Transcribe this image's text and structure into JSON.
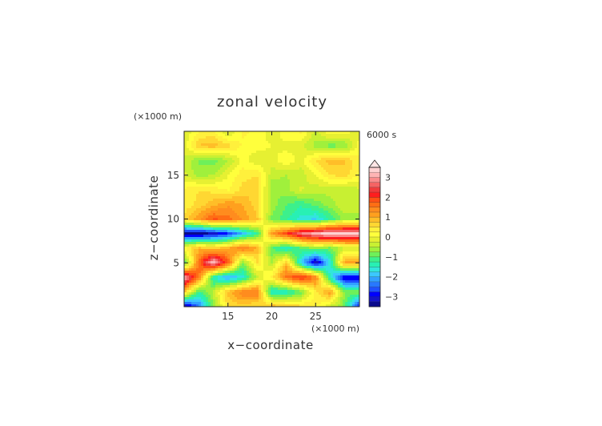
{
  "chart_data": {
    "type": "heatmap",
    "title": "zonal velocity",
    "xlabel": "x−coordinate",
    "ylabel": "z−coordinate",
    "x_unit": "(×1000 m)",
    "y_unit": "(×1000 m)",
    "time_label": "6000 s",
    "xlim": [
      10,
      30
    ],
    "ylim": [
      0,
      20
    ],
    "x_ticks": [
      15,
      20,
      25
    ],
    "x_tick_labels": [
      "15",
      "20",
      "25"
    ],
    "y_ticks": [
      5,
      10,
      15
    ],
    "y_tick_labels": [
      "5",
      "10",
      "15"
    ],
    "colorbar": {
      "levels": [
        -3.5,
        -3.25,
        -3,
        -2.75,
        -2.5,
        -2.25,
        -2,
        -1.75,
        -1.5,
        -1.25,
        -1,
        -0.75,
        -0.5,
        -0.25,
        0,
        0.25,
        0.5,
        0.75,
        1,
        1.25,
        1.5,
        1.75,
        2,
        2.25,
        2.5,
        2.75,
        3,
        3.25,
        3.5
      ],
      "tick_values": [
        3,
        2,
        1,
        0,
        -1,
        -2,
        -3
      ],
      "tick_labels": [
        "3",
        "2",
        "1",
        "0",
        "−1",
        "−2",
        "−3"
      ],
      "colors": [
        "#0a0a8c",
        "#1414c8",
        "#0000ff",
        "#1e50ff",
        "#2878ff",
        "#32a0ff",
        "#3cc8ff",
        "#32e6dc",
        "#28f0b4",
        "#3cf08c",
        "#6ef05a",
        "#a0f03c",
        "#c8f032",
        "#e6f032",
        "#ffff3c",
        "#fff03c",
        "#ffd732",
        "#ffbe28",
        "#ffa01e",
        "#ff8c1e",
        "#ff6e14",
        "#ff5014",
        "#ff1e1e",
        "#f03c3c",
        "#f56464",
        "#fa8c8c",
        "#ffb4b4",
        "#ffd2d2"
      ],
      "overflow_color": "#ffe6e6"
    },
    "grid": [
      [
        -0.2,
        0.2,
        0.3,
        -0.3,
        0.3,
        0.2,
        -0.2,
        0.2,
        0.3,
        -0.3,
        0.3,
        0.2,
        -0.2
      ],
      [
        -0.2,
        0.8,
        0.9,
        0.6,
        0.2,
        0.1,
        0.0,
        -0.1,
        -0.2,
        -0.6,
        -0.9,
        -0.8,
        0.2
      ],
      [
        -0.3,
        -0.8,
        -0.9,
        -0.5,
        0.1,
        -0.2,
        -0.1,
        0.2,
        -0.1,
        0.5,
        0.9,
        0.8,
        0.3
      ],
      [
        -0.2,
        -0.6,
        -0.5,
        0.0,
        0.4,
        0.5,
        -0.4,
        -0.5,
        -0.4,
        0.0,
        0.5,
        0.6,
        0.2
      ],
      [
        0.3,
        0.5,
        0.4,
        0.2,
        0.6,
        0.7,
        -0.7,
        -0.6,
        -0.2,
        -0.4,
        -0.4,
        -0.5,
        -0.3
      ],
      [
        0.3,
        0.6,
        0.9,
        1.2,
        1.0,
        0.6,
        -0.6,
        -1.0,
        -1.2,
        -0.9,
        -0.6,
        -0.3,
        -0.3
      ],
      [
        0.6,
        1.2,
        1.8,
        1.6,
        1.2,
        0.8,
        -0.8,
        -1.2,
        -1.6,
        -1.8,
        -1.2,
        -0.6,
        -0.6
      ],
      [
        -3.4,
        -3.5,
        -3.2,
        -2.8,
        -2.0,
        -1.2,
        1.2,
        2.0,
        2.8,
        3.2,
        3.5,
        3.4,
        3.4
      ],
      [
        0.3,
        0.9,
        0.7,
        1.0,
        1.6,
        1.0,
        -1.0,
        -1.6,
        -1.0,
        -0.7,
        -0.9,
        -0.3,
        -0.3
      ],
      [
        -1.2,
        1.6,
        3.4,
        1.8,
        -0.8,
        0.5,
        -0.5,
        0.8,
        -1.8,
        -3.4,
        -1.6,
        1.2,
        1.2
      ],
      [
        3.2,
        1.6,
        -1.5,
        -2.2,
        -1.6,
        -0.4,
        0.4,
        1.6,
        2.2,
        1.5,
        -1.6,
        -3.2,
        -3.2
      ],
      [
        0.8,
        -1.2,
        -0.4,
        0.9,
        1.5,
        1.6,
        -1.6,
        -1.5,
        -0.9,
        0.4,
        1.2,
        -0.8,
        -0.8
      ],
      [
        -3.5,
        -2.4,
        -0.8,
        0.5,
        0.6,
        0.4,
        1.0,
        0.8,
        0.6,
        0.3,
        -0.3,
        -0.9,
        -3.0
      ]
    ],
    "grid_y_from_top": true
  }
}
